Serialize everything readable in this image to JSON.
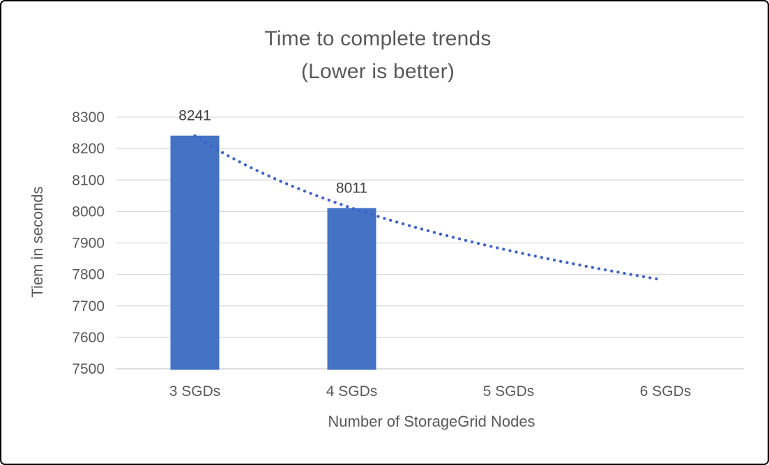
{
  "chart_data": {
    "type": "bar",
    "title": "Time to complete trends",
    "subtitle": "(Lower is better)",
    "xlabel": "Number of StorageGrid Nodes",
    "ylabel": "Tiem in seconds",
    "categories": [
      "3 SGDs",
      "4 SGDs",
      "5 SGDs",
      "6 SGDs"
    ],
    "values": [
      8241,
      8011,
      null,
      null
    ],
    "data_labels": [
      "8241",
      "8011"
    ],
    "ylim": [
      7500,
      8300
    ],
    "y_step": 100,
    "y_ticks": [
      8300,
      8200,
      8100,
      8000,
      7900,
      7800,
      7700,
      7600,
      7500
    ],
    "grid": "horizontal",
    "legend": "none",
    "trendline": {
      "type": "logarithmic",
      "style": "dotted",
      "a": 8241,
      "b": -331.83,
      "points": [
        8241,
        8011,
        7877,
        7781
      ]
    },
    "colors": {
      "bar": "#4472C4",
      "trendline": "#3C63C9",
      "gridline": "#D9D9D9",
      "axis_line": "#D2D2D2",
      "tick_text": "#595959",
      "title_text": "#595959",
      "data_label_text": "#404040",
      "border": "#000000",
      "background": "#FFFFFF"
    }
  }
}
